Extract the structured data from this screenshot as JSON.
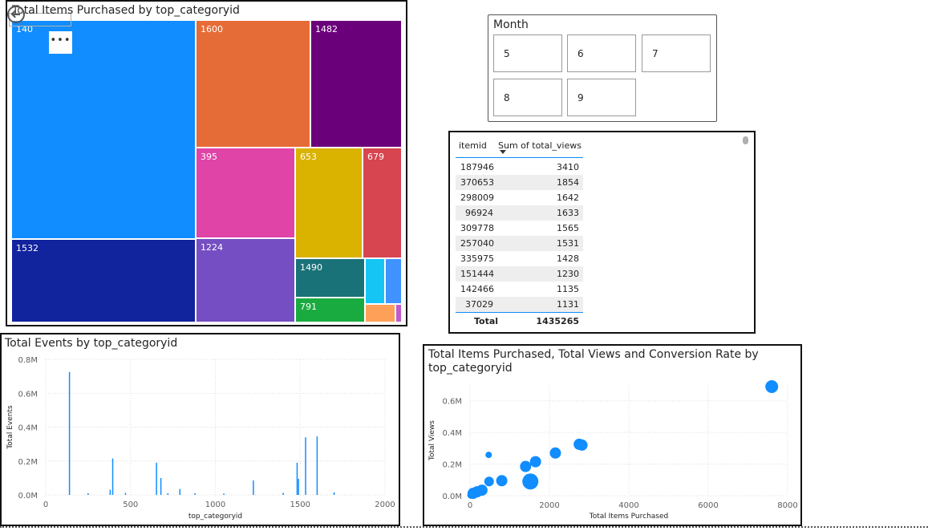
{
  "treemap": {
    "title": "Total Items Purchased by top_categoryid",
    "more_label": "•••",
    "tiles": [
      {
        "label": "140",
        "color": "#118DFF"
      },
      {
        "label": "1532",
        "color": "#12239E"
      },
      {
        "label": "1600",
        "color": "#E66C37"
      },
      {
        "label": "1482",
        "color": "#6B007B"
      },
      {
        "label": "395",
        "color": "#E044A7"
      },
      {
        "label": "1224",
        "color": "#744EC2"
      },
      {
        "label": "653",
        "color": "#D9B300"
      },
      {
        "label": "679",
        "color": "#D64550"
      },
      {
        "label": "1490",
        "color": "#197278"
      },
      {
        "label": "791",
        "color": "#1AAB40"
      },
      {
        "label": "",
        "color": "#15C6F4"
      },
      {
        "label": "",
        "color": "#4092FF"
      },
      {
        "label": "",
        "color": "#FFA058"
      },
      {
        "label": "",
        "color": "#BE5DC9"
      }
    ]
  },
  "slicer": {
    "header": "Month",
    "options": [
      "5",
      "6",
      "7",
      "8",
      "9"
    ]
  },
  "table": {
    "columns": [
      "itemid",
      "Sum of total_views"
    ],
    "rows": [
      [
        "187946",
        "3410"
      ],
      [
        "370653",
        "1854"
      ],
      [
        "298009",
        "1642"
      ],
      [
        "96924",
        "1633"
      ],
      [
        "309778",
        "1565"
      ],
      [
        "257040",
        "1531"
      ],
      [
        "335975",
        "1428"
      ],
      [
        "151444",
        "1230"
      ],
      [
        "142466",
        "1135"
      ],
      [
        "37029",
        "1131"
      ]
    ],
    "total_label": "Total",
    "total_value": "1435265"
  },
  "chart_data": [
    {
      "type": "bar",
      "title": "Total Events by top_categoryid",
      "xlabel": "top_categoryid",
      "ylabel": "Total Events",
      "xlim": [
        0,
        2000
      ],
      "ylim": [
        0,
        800000
      ],
      "xticks": [
        "0",
        "500",
        "1000",
        "1500",
        "2000"
      ],
      "yticks": [
        "0.0M",
        "0.2M",
        "0.4M",
        "0.6M",
        "0.8M"
      ],
      "x": [
        140,
        250,
        380,
        395,
        470,
        653,
        679,
        720,
        791,
        880,
        1050,
        1224,
        1400,
        1482,
        1490,
        1532,
        1600,
        1700
      ],
      "values": [
        725000,
        10000,
        30000,
        215000,
        12000,
        190000,
        100000,
        10000,
        35000,
        10000,
        8000,
        85000,
        12000,
        190000,
        95000,
        340000,
        345000,
        15000
      ],
      "color": "#118DFF",
      "grid": true
    },
    {
      "type": "scatter",
      "title": "Total Items Purchased, Total Views and Conversion Rate by top_categoryid",
      "xlabel": "Total Items Purchased",
      "ylabel": "Total Views",
      "xlim": [
        0,
        8000
      ],
      "ylim": [
        0,
        700000
      ],
      "xticks": [
        "0",
        "2000",
        "4000",
        "6000",
        "8000"
      ],
      "yticks": [
        "0.0M",
        "0.2M",
        "0.4M",
        "0.6M"
      ],
      "points": [
        {
          "x": 7600,
          "y": 690000,
          "size": 8
        },
        {
          "x": 2750,
          "y": 325000,
          "size": 7
        },
        {
          "x": 2820,
          "y": 320000,
          "size": 7
        },
        {
          "x": 2150,
          "y": 270000,
          "size": 7
        },
        {
          "x": 1650,
          "y": 215000,
          "size": 7
        },
        {
          "x": 1400,
          "y": 185000,
          "size": 7
        },
        {
          "x": 470,
          "y": 258000,
          "size": 4
        },
        {
          "x": 1520,
          "y": 90000,
          "size": 10
        },
        {
          "x": 800,
          "y": 95000,
          "size": 7
        },
        {
          "x": 480,
          "y": 90000,
          "size": 6
        },
        {
          "x": 300,
          "y": 35000,
          "size": 7
        },
        {
          "x": 180,
          "y": 25000,
          "size": 7
        },
        {
          "x": 80,
          "y": 15000,
          "size": 7
        },
        {
          "x": 30,
          "y": 5000,
          "size": 5
        }
      ],
      "color": "#118DFF",
      "grid": true
    }
  ]
}
